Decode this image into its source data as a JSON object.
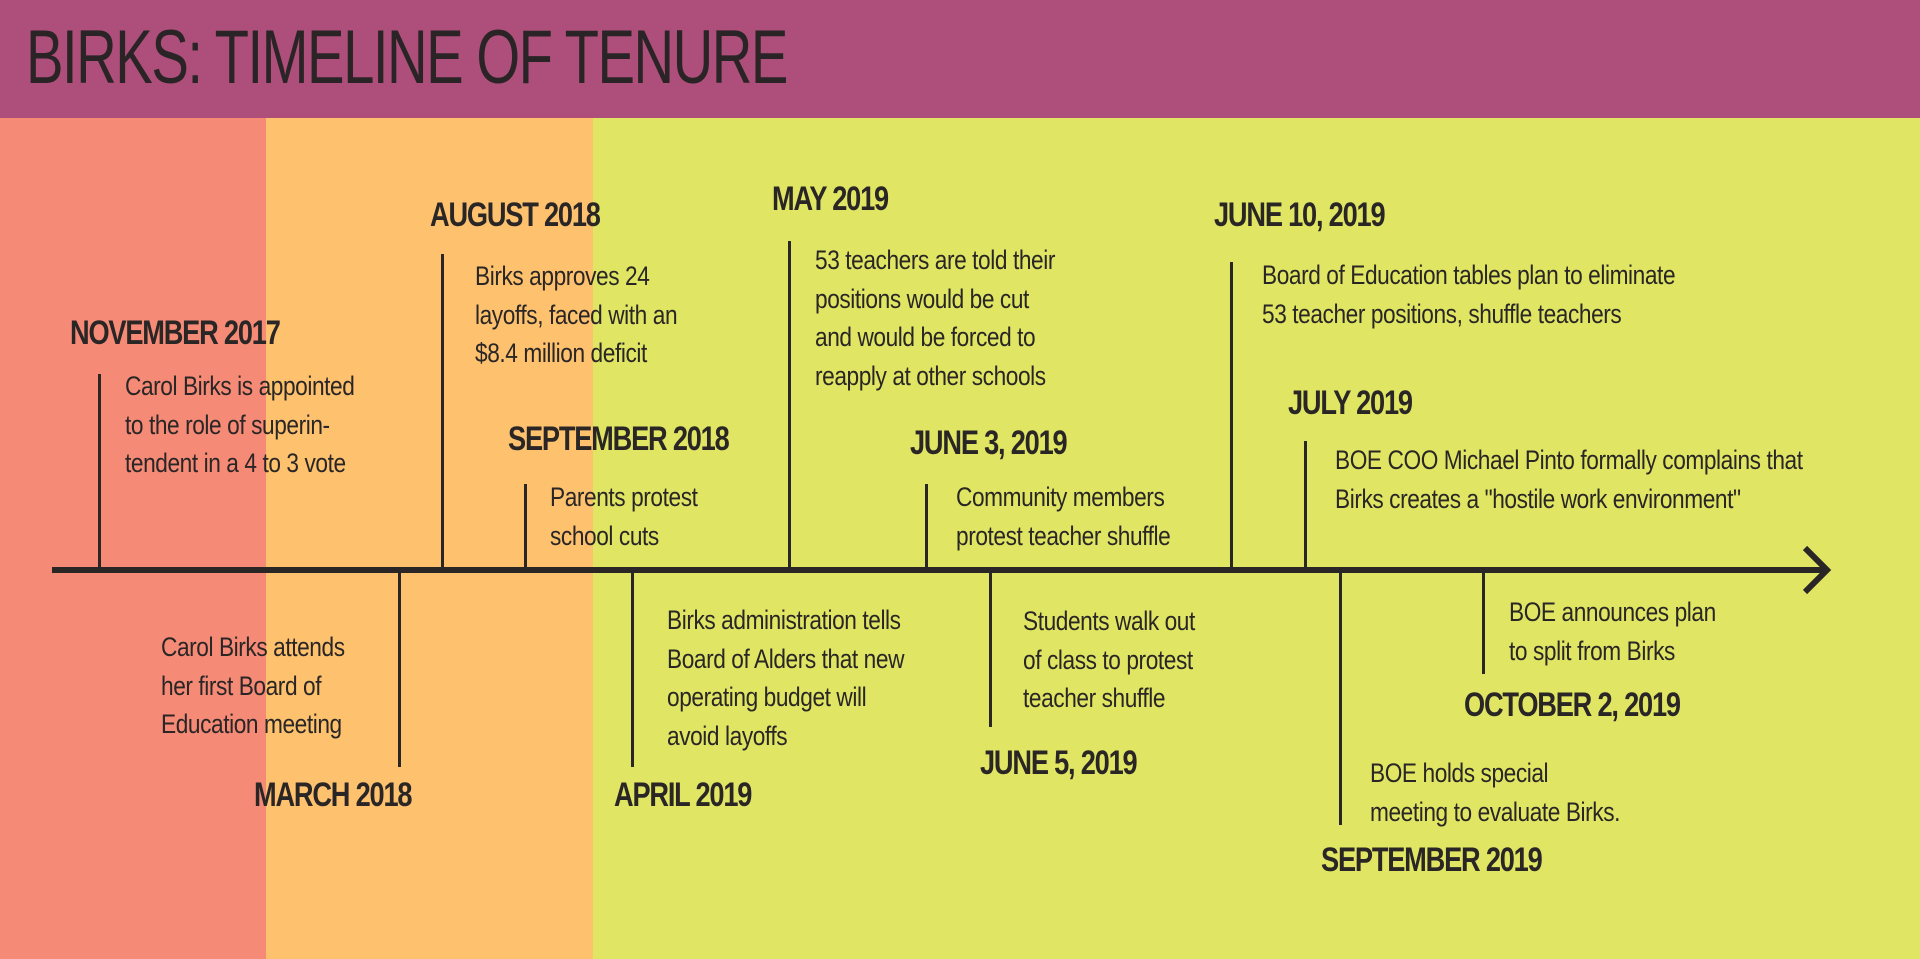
{
  "title": "BIRKS: TIMELINE OF TENURE",
  "colors": {
    "header": "#ad4f7a",
    "band_2017": "#f58b76",
    "band_2018": "#fec26f",
    "band_2019": "#e0e663",
    "ink": "#2a2626"
  },
  "events": [
    {
      "date": "NOVEMBER 2017",
      "text": "Carol Birks is appointed\nto the role of superin-\ntendent in a 4 to 3 vote"
    },
    {
      "date": "MARCH 2018",
      "text": "Carol Birks attends\nher first Board of\nEducation meeting"
    },
    {
      "date": "AUGUST 2018",
      "text": "Birks approves 24\nlayoffs, faced with an\n$8.4 million deficit"
    },
    {
      "date": "SEPTEMBER 2018",
      "text": "Parents protest\nschool cuts"
    },
    {
      "date": "APRIL 2019",
      "text": "Birks administration tells\nBoard of Alders that new\noperating budget will\navoid layoffs"
    },
    {
      "date": "MAY 2019",
      "text": "53 teachers are told their\npositions would be cut\nand would be forced to\nreapply at other schools"
    },
    {
      "date": "JUNE 3, 2019",
      "text": "Community members\nprotest teacher shuffle"
    },
    {
      "date": "JUNE 5, 2019",
      "text": "Students walk out\nof class to protest\nteacher shuffle"
    },
    {
      "date": "JUNE 10, 2019",
      "text": "Board of Education tables plan to eliminate\n53 teacher positions, shuffle teachers"
    },
    {
      "date": "JULY 2019",
      "text": "BOE COO Michael Pinto formally complains that\nBirks creates a \"hostile work environment\""
    },
    {
      "date": "SEPTEMBER 2019",
      "text": "BOE holds special\nmeeting to evaluate Birks."
    },
    {
      "date": "OCTOBER 2, 2019",
      "text": "BOE announces plan\nto split from Birks"
    }
  ]
}
